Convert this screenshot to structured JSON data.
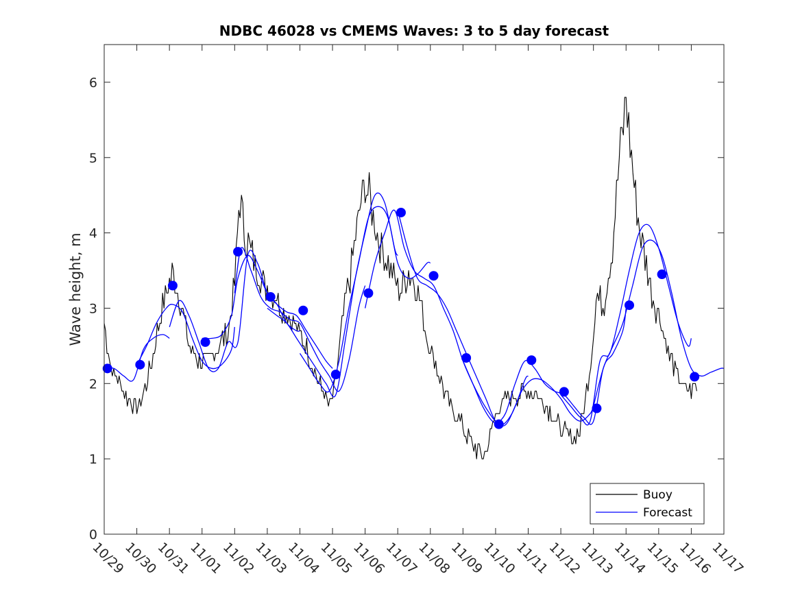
{
  "chart_data": {
    "type": "line",
    "title": "NDBC 46028 vs CMEMS Waves: 3 to 5 day forecast",
    "xlabel": "",
    "ylabel": "Wave height, m",
    "xlim": [
      0,
      19
    ],
    "ylim": [
      0,
      6.5
    ],
    "x_tick_values": [
      0,
      1,
      2,
      3,
      4,
      5,
      6,
      7,
      8,
      9,
      10,
      11,
      12,
      13,
      14,
      15,
      16,
      17,
      18,
      19
    ],
    "x_tick_labels": [
      "10/29",
      "10/30",
      "10/31",
      "11/01",
      "11/02",
      "11/03",
      "11/04",
      "11/05",
      "11/06",
      "11/07",
      "11/08",
      "11/09",
      "11/10",
      "11/11",
      "11/12",
      "11/13",
      "11/14",
      "11/15",
      "11/16",
      "11/17"
    ],
    "y_ticks": [
      0,
      1,
      2,
      3,
      4,
      5,
      6
    ],
    "y_tick_labels": [
      "0",
      "1",
      "2",
      "3",
      "4",
      "5",
      "6"
    ],
    "legend": {
      "position": "bottom-right",
      "entries": [
        "Buoy",
        "Forecast"
      ]
    },
    "colors": {
      "buoy": "#000000",
      "forecast": "#0000ff",
      "axis": "#262626"
    },
    "buoy_keypoints": {
      "x": [
        0.0,
        0.2,
        0.5,
        0.8,
        1.0,
        1.1,
        1.3,
        1.6,
        1.8,
        2.1,
        2.4,
        2.6,
        2.9,
        3.2,
        3.5,
        3.8,
        4.0,
        4.15,
        4.3,
        4.6,
        4.9,
        5.2,
        5.5,
        5.8,
        6.1,
        6.4,
        6.6,
        6.9,
        7.1,
        7.3,
        7.6,
        7.8,
        8.0,
        8.2,
        8.5,
        8.8,
        9.1,
        9.3,
        9.6,
        9.9,
        10.2,
        10.5,
        10.9,
        11.3,
        11.7,
        12.0,
        12.3,
        12.5,
        12.8,
        13.1,
        13.4,
        13.7,
        14.0,
        14.3,
        14.6,
        14.9,
        15.1,
        15.3,
        15.6,
        15.8,
        16.0,
        16.3,
        16.6,
        16.8,
        17.1,
        17.3,
        17.6,
        17.8,
        18.0,
        18.2
      ],
      "y": [
        2.8,
        2.2,
        2.0,
        1.75,
        1.65,
        1.7,
        2.0,
        2.6,
        3.1,
        3.45,
        3.0,
        2.5,
        2.3,
        2.3,
        2.5,
        2.7,
        3.3,
        4.5,
        4.0,
        3.6,
        3.3,
        3.2,
        3.0,
        2.8,
        2.6,
        2.2,
        2.0,
        1.7,
        2.0,
        2.8,
        3.6,
        4.2,
        4.7,
        4.3,
        3.8,
        3.5,
        3.2,
        3.5,
        3.3,
        2.6,
        2.2,
        1.8,
        1.5,
        1.15,
        1.05,
        1.6,
        1.8,
        1.8,
        1.9,
        1.9,
        1.8,
        1.6,
        1.4,
        1.25,
        1.4,
        2.2,
        3.2,
        3.0,
        3.9,
        5.0,
        5.8,
        4.4,
        3.6,
        3.2,
        2.8,
        2.4,
        2.1,
        1.9,
        1.9,
        2.0
      ]
    },
    "forecast_runs": [
      {
        "name": "Forecast",
        "x": [
          0.0,
          0.3,
          0.6,
          0.9,
          1.2,
          1.5,
          1.8,
          2.0
        ],
        "y": [
          2.2,
          2.2,
          2.1,
          2.05,
          2.45,
          2.6,
          2.65,
          2.6
        ]
      },
      {
        "name": "Forecast",
        "x": [
          1.0,
          1.3,
          1.6,
          1.9,
          2.1,
          2.4,
          2.7,
          3.0,
          3.3,
          3.6,
          3.9,
          4.0
        ],
        "y": [
          2.25,
          2.5,
          2.8,
          3.0,
          3.05,
          2.95,
          2.6,
          2.3,
          2.2,
          2.25,
          2.45,
          2.75
        ]
      },
      {
        "name": "Forecast",
        "x": [
          2.0,
          2.3,
          2.6,
          2.9,
          3.2,
          3.5,
          3.8,
          4.1,
          4.4,
          4.7,
          5.0,
          5.3,
          5.6,
          5.9,
          6.0
        ],
        "y": [
          2.75,
          3.1,
          2.9,
          2.55,
          2.2,
          2.2,
          2.55,
          2.55,
          3.7,
          3.6,
          3.2,
          3.05,
          2.8,
          2.7,
          2.7
        ]
      },
      {
        "name": "Forecast",
        "x": [
          3.0,
          3.3,
          3.6,
          3.9,
          4.1,
          4.4,
          4.7,
          5.0,
          5.3,
          5.6,
          5.9,
          6.2,
          6.5,
          6.8,
          7.0
        ],
        "y": [
          2.6,
          2.6,
          2.65,
          2.9,
          3.4,
          3.7,
          3.5,
          3.2,
          3.05,
          2.95,
          2.9,
          2.7,
          2.5,
          2.3,
          2.2
        ]
      },
      {
        "name": "Forecast",
        "x": [
          4.0,
          4.2,
          4.5,
          4.8,
          5.1,
          5.4,
          5.7,
          6.0,
          6.3,
          6.6,
          6.9,
          7.2,
          7.5,
          7.8,
          8.0
        ],
        "y": [
          3.2,
          3.8,
          3.5,
          3.15,
          3.0,
          2.95,
          2.85,
          2.8,
          2.55,
          2.3,
          2.1,
          1.9,
          2.3,
          3.0,
          3.3
        ]
      },
      {
        "name": "Forecast",
        "x": [
          5.0,
          5.3,
          5.6,
          5.9,
          6.2,
          6.5,
          6.8,
          7.1,
          7.4,
          7.7,
          8.0,
          8.3,
          8.6,
          8.9,
          9.0
        ],
        "y": [
          3.0,
          2.9,
          2.8,
          2.6,
          2.4,
          2.2,
          2.0,
          1.85,
          2.6,
          3.4,
          4.0,
          4.5,
          4.4,
          3.8,
          3.7
        ]
      },
      {
        "name": "Forecast",
        "x": [
          6.0,
          6.3,
          6.6,
          6.9,
          7.2,
          7.5,
          7.8,
          8.1,
          8.4,
          8.7,
          9.0,
          9.3,
          9.6,
          9.9,
          10.0
        ],
        "y": [
          2.4,
          2.2,
          2.0,
          1.9,
          2.3,
          3.0,
          3.6,
          4.2,
          4.35,
          4.2,
          3.6,
          3.4,
          3.45,
          3.6,
          3.6
        ]
      },
      {
        "name": "Forecast",
        "x": [
          8.0,
          8.3,
          8.6,
          8.9,
          9.2,
          9.5,
          9.8,
          10.1,
          10.4,
          10.7,
          11.0,
          11.3,
          11.6,
          11.9,
          12.0
        ],
        "y": [
          3.0,
          3.6,
          4.0,
          4.3,
          3.8,
          3.5,
          3.4,
          3.3,
          3.0,
          2.7,
          2.3,
          2.0,
          1.75,
          1.55,
          1.5
        ]
      },
      {
        "name": "Forecast",
        "x": [
          9.0,
          9.3,
          9.6,
          9.9,
          10.2,
          10.5,
          10.8,
          11.1,
          11.4,
          11.7,
          12.0,
          12.3,
          12.6,
          12.9,
          13.0
        ],
        "y": [
          4.3,
          3.8,
          3.4,
          3.3,
          3.2,
          3.0,
          2.7,
          2.4,
          2.1,
          1.8,
          1.5,
          1.45,
          1.7,
          2.05,
          2.1
        ]
      },
      {
        "name": "Forecast",
        "x": [
          11.0,
          11.3,
          11.6,
          11.9,
          12.2,
          12.5,
          12.8,
          13.1,
          13.4,
          13.7,
          14.0,
          14.3,
          14.6,
          14.9,
          15.0
        ],
        "y": [
          2.3,
          2.0,
          1.7,
          1.5,
          1.45,
          1.6,
          1.9,
          2.05,
          2.05,
          1.95,
          1.8,
          1.6,
          1.5,
          1.6,
          1.7
        ]
      },
      {
        "name": "Forecast",
        "x": [
          12.0,
          12.3,
          12.6,
          12.9,
          13.2,
          13.5,
          13.8,
          14.1,
          14.4,
          14.7,
          15.0,
          15.3,
          15.6,
          15.9,
          16.0
        ],
        "y": [
          1.45,
          1.6,
          2.0,
          2.3,
          2.2,
          2.0,
          1.9,
          1.85,
          1.7,
          1.55,
          1.5,
          2.2,
          2.4,
          2.7,
          3.0
        ]
      },
      {
        "name": "Forecast",
        "x": [
          14.0,
          14.3,
          14.6,
          14.9,
          15.2,
          15.5,
          15.8,
          16.1,
          16.4,
          16.7,
          17.0,
          17.3,
          17.6,
          17.9,
          18.0
        ],
        "y": [
          1.85,
          1.7,
          1.55,
          1.5,
          2.3,
          2.4,
          2.9,
          3.5,
          4.0,
          4.1,
          3.8,
          3.3,
          2.8,
          2.5,
          2.6
        ]
      },
      {
        "name": "Forecast",
        "x": [
          15.0,
          15.3,
          15.6,
          15.9,
          16.2,
          16.5,
          16.8,
          17.1,
          17.4,
          17.7,
          18.0,
          18.3,
          18.6,
          18.9,
          19.0
        ],
        "y": [
          1.7,
          2.2,
          2.5,
          2.8,
          3.3,
          3.8,
          3.9,
          3.7,
          3.2,
          2.6,
          2.2,
          2.1,
          2.15,
          2.2,
          2.2
        ]
      }
    ],
    "forecast_markers": {
      "x": [
        0.1,
        1.1,
        2.1,
        3.1,
        4.1,
        5.1,
        6.1,
        7.1,
        8.1,
        9.1,
        10.1,
        11.1,
        12.1,
        13.1,
        14.1,
        15.1,
        16.1,
        17.1,
        18.1
      ],
      "y": [
        2.2,
        2.25,
        3.3,
        2.55,
        3.75,
        3.15,
        2.97,
        2.12,
        3.2,
        4.27,
        3.43,
        2.34,
        1.46,
        2.31,
        1.89,
        1.67,
        3.04,
        3.45,
        2.09
      ]
    }
  }
}
